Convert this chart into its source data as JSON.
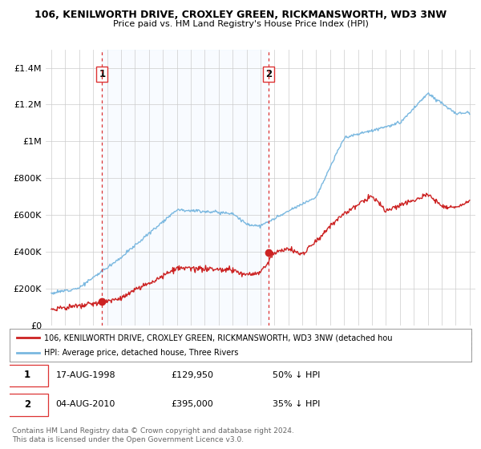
{
  "title": "106, KENILWORTH DRIVE, CROXLEY GREEN, RICKMANSWORTH, WD3 3NW",
  "subtitle": "Price paid vs. HM Land Registry's House Price Index (HPI)",
  "ylabel_values": [
    "£0",
    "£200K",
    "£400K",
    "£600K",
    "£800K",
    "£1M",
    "£1.2M",
    "£1.4M"
  ],
  "ylim": [
    0,
    1500000
  ],
  "yticks": [
    0,
    200000,
    400000,
    600000,
    800000,
    1000000,
    1200000,
    1400000
  ],
  "hpi_color": "#7ab8e0",
  "price_color": "#cc2222",
  "vline_color": "#dd3333",
  "shading_color": "#ddeeff",
  "point1": {
    "year": 1998.65,
    "price": 129950,
    "label": "1"
  },
  "point2": {
    "year": 2010.6,
    "price": 395000,
    "label": "2"
  },
  "legend_line1": "106, KENILWORTH DRIVE, CROXLEY GREEN, RICKMANSWORTH, WD3 3NW (detached hou",
  "legend_line2": "HPI: Average price, detached house, Three Rivers",
  "table_row1": [
    "1",
    "17-AUG-1998",
    "£129,950",
    "50% ↓ HPI"
  ],
  "table_row2": [
    "2",
    "04-AUG-2010",
    "£395,000",
    "35% ↓ HPI"
  ],
  "footer": "Contains HM Land Registry data © Crown copyright and database right 2024.\nThis data is licensed under the Open Government Licence v3.0.",
  "background_color": "#ffffff"
}
